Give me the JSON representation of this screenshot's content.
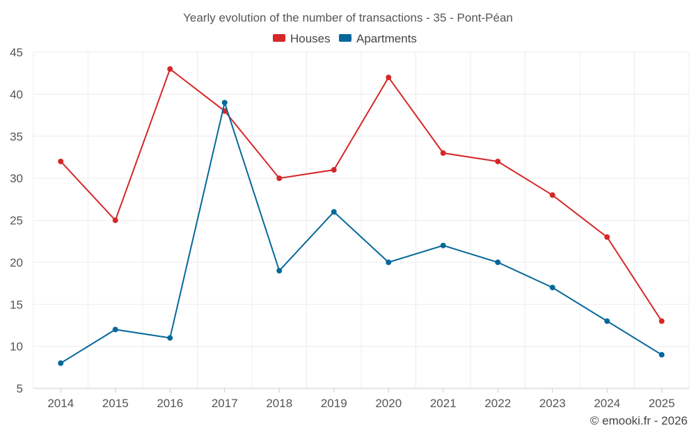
{
  "chart_data": {
    "type": "line",
    "title": "Yearly evolution of the number of transactions - 35 - Pont-Péan",
    "xlabel": "",
    "ylabel": "",
    "categories": [
      "2014",
      "2015",
      "2016",
      "2017",
      "2018",
      "2019",
      "2020",
      "2021",
      "2022",
      "2023",
      "2024",
      "2025"
    ],
    "ylim": [
      5,
      45
    ],
    "yticks": [
      5,
      10,
      15,
      20,
      25,
      30,
      35,
      40,
      45
    ],
    "grid": true,
    "legend_position": "top-center",
    "series": [
      {
        "name": "Houses",
        "color": "#d62728",
        "values": [
          32,
          25,
          43,
          38,
          30,
          31,
          42,
          33,
          32,
          28,
          23,
          13
        ]
      },
      {
        "name": "Apartments",
        "color": "#05689a",
        "values": [
          8,
          12,
          11,
          39,
          19,
          26,
          20,
          22,
          20,
          17,
          13,
          9
        ]
      }
    ]
  },
  "credit": "© emooki.fr - 2026"
}
